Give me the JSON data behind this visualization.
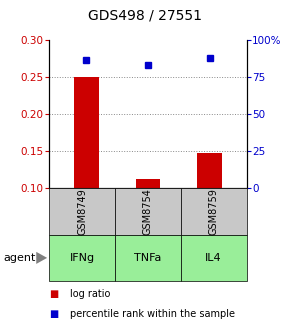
{
  "title": "GDS498 / 27551",
  "samples": [
    "GSM8749",
    "GSM8754",
    "GSM8759"
  ],
  "agents": [
    "IFNg",
    "TNFa",
    "IL4"
  ],
  "log_ratios": [
    0.25,
    0.112,
    0.148
  ],
  "percentile_ranks": [
    87,
    83,
    88
  ],
  "ylim_left": [
    0.1,
    0.3
  ],
  "ylim_right": [
    0,
    100
  ],
  "yticks_left": [
    0.1,
    0.15,
    0.2,
    0.25,
    0.3
  ],
  "yticks_right": [
    0,
    25,
    50,
    75,
    100
  ],
  "bar_color": "#cc0000",
  "point_color": "#0000cc",
  "sample_box_color": "#c8c8c8",
  "agent_box_color": "#99ee99",
  "grid_color": "#888888",
  "legend_bar_label": "log ratio",
  "legend_point_label": "percentile rank within the sample",
  "background_color": "#ffffff",
  "title_fontsize": 10,
  "tick_fontsize": 7.5,
  "agent_fontsize": 8,
  "sample_fontsize": 7,
  "legend_fontsize": 7
}
